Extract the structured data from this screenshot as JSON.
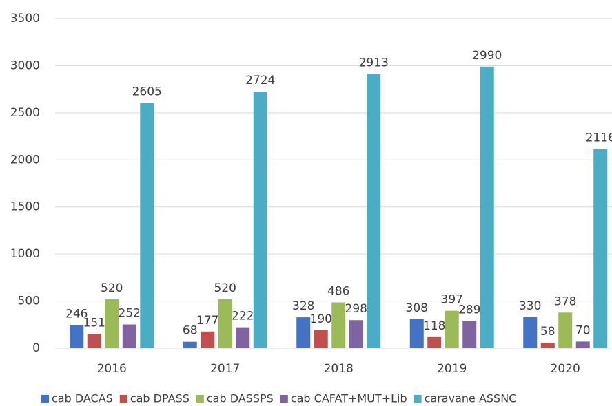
{
  "chart_data": {
    "type": "bar",
    "categories": [
      "2016",
      "2017",
      "2018",
      "2019",
      "2020"
    ],
    "series": [
      {
        "name": "cab DACAS",
        "color": "#4472c4",
        "values": [
          246,
          68,
          328,
          308,
          330
        ]
      },
      {
        "name": "cab DPASS",
        "color": "#c0504d",
        "values": [
          151,
          177,
          190,
          118,
          58
        ]
      },
      {
        "name": "cab DASSPS",
        "color": "#9bbb59",
        "values": [
          520,
          520,
          486,
          397,
          378
        ]
      },
      {
        "name": "cab CAFAT+MUT+Lib",
        "color": "#8064a2",
        "values": [
          252,
          222,
          298,
          289,
          70
        ]
      },
      {
        "name": "caravane ASSNC",
        "color": "#4bacc6",
        "values": [
          2605,
          2724,
          2913,
          2990,
          2116
        ]
      }
    ],
    "ylim": [
      0,
      3500
    ],
    "yticks": [
      0,
      500,
      1000,
      1500,
      2000,
      2500,
      3000,
      3500
    ],
    "grid": true,
    "legend": "bottom"
  }
}
